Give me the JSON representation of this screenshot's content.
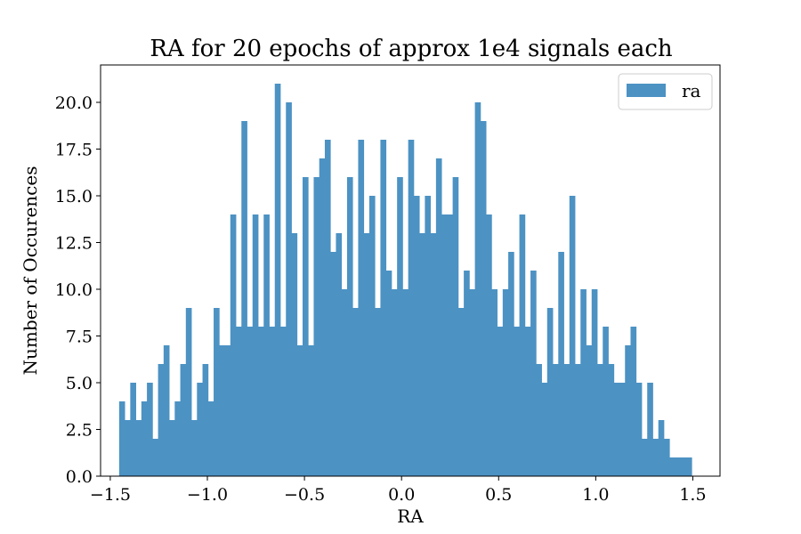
{
  "chart_data": {
    "type": "bar",
    "title": "RA for 20 epochs of approx 1e4 signals each",
    "xlabel": "RA",
    "ylabel": "Number of Occurences",
    "xlim": [
      -1.55,
      1.64
    ],
    "ylim": [
      0,
      22.0
    ],
    "xticks": [
      -1.5,
      -1.0,
      -0.5,
      0.0,
      0.5,
      1.0,
      1.5
    ],
    "xtick_labels": [
      "−1.5",
      "−1.0",
      "−0.5",
      "0.0",
      "0.5",
      "1.0",
      "1.5"
    ],
    "yticks": [
      0.0,
      2.5,
      5.0,
      7.5,
      10.0,
      12.5,
      15.0,
      17.5,
      20.0
    ],
    "ytick_labels": [
      "0.0",
      "2.5",
      "5.0",
      "7.5",
      "10.0",
      "12.5",
      "15.0",
      "17.5",
      "20.0"
    ],
    "grid": false,
    "legend_position": "top-right",
    "bin_start": -1.4544,
    "bin_end": 1.4942,
    "series": [
      {
        "name": "ra",
        "color": "#4c92c3",
        "values": [
          4,
          3,
          5,
          3,
          4,
          5,
          2,
          6,
          7,
          3,
          4,
          6,
          9,
          3,
          5,
          6,
          4,
          9,
          7,
          7,
          14,
          8,
          19,
          8,
          14,
          8,
          14,
          8,
          21,
          8,
          20,
          13,
          7,
          16,
          7,
          16,
          17,
          18,
          12,
          13,
          10,
          16,
          9,
          18,
          13,
          15,
          9,
          18,
          11,
          10,
          16,
          10,
          18,
          15,
          13,
          15,
          13,
          17,
          14,
          14,
          16,
          9,
          11,
          10,
          20,
          19,
          14,
          10,
          8,
          10,
          12,
          8,
          14,
          8,
          11,
          6,
          5,
          9,
          6,
          12,
          6,
          15,
          6,
          10,
          7,
          10,
          6,
          8,
          6,
          5,
          5,
          7,
          8,
          5,
          2,
          5,
          2,
          3,
          2,
          1,
          1,
          1,
          1
        ]
      }
    ]
  }
}
